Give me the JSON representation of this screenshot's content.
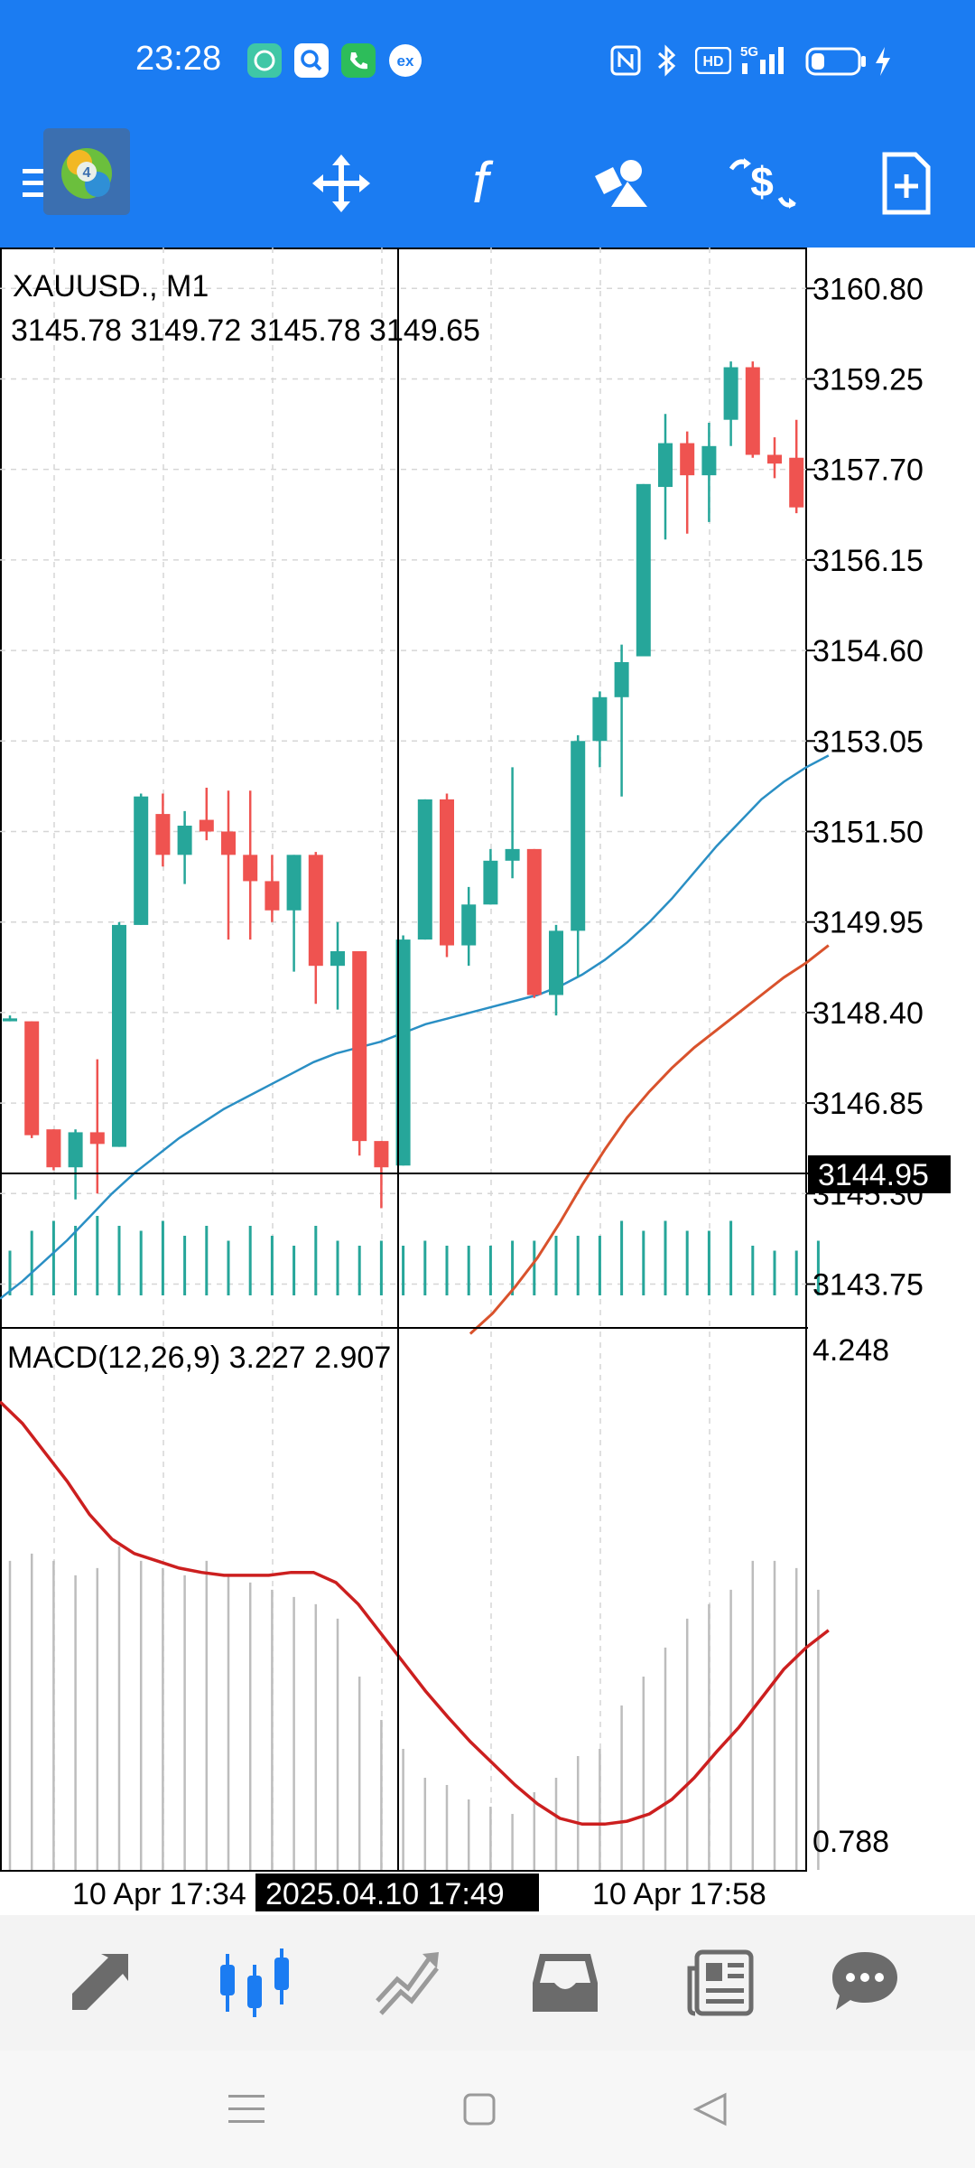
{
  "status_bar": {
    "time": "23:28",
    "left_icons": [
      "chat-app-icon",
      "search-app-icon",
      "phone-app-icon",
      "ex-app-icon"
    ],
    "ex_label": "ex",
    "right_icons": [
      "nfc-icon",
      "bluetooth-icon",
      "hd-icon",
      "5g-signal-icon",
      "battery-icon",
      "charging-icon"
    ],
    "hd_label": "HD",
    "network_label": "5G"
  },
  "toolbar": {
    "items": [
      {
        "name": "menu-icon"
      },
      {
        "name": "app-logo-icon"
      },
      {
        "name": "crosshair-move-icon"
      },
      {
        "name": "indicators-f-icon",
        "label": "f"
      },
      {
        "name": "objects-shapes-icon"
      },
      {
        "name": "trade-dollar-icon"
      },
      {
        "name": "new-order-document-icon"
      }
    ]
  },
  "chart": {
    "symbol_label": "XAUUSD., M1",
    "ohlc_label": "3145.78 3149.72 3145.78 3149.65",
    "price_ticks": [
      "3160.80",
      "3159.25",
      "3157.70",
      "3156.15",
      "3154.60",
      "3153.05",
      "3151.50",
      "3149.95",
      "3148.40",
      "3146.85",
      "3145.30",
      "3143.75"
    ],
    "crosshair_price": "3144.95",
    "crosshair_time": "2025.04.10 17:49",
    "time_ticks": [
      "10 Apr 17:34",
      "10 Apr 17:58"
    ],
    "macd_label": "MACD(12,26,9) 3.227 2.907",
    "macd_ticks": [
      "4.248",
      "0.788"
    ],
    "colors": {
      "bull": "#26a69a",
      "bear": "#ef5350",
      "ma_fast": "#2a8fc4",
      "ma_slow": "#d9522c",
      "macd_signal": "#cc1f1f",
      "macd_hist": "#bdbdbd",
      "volume": "#26a69a"
    }
  },
  "chart_data": {
    "type": "candlestick",
    "symbol": "XAUUSD.",
    "timeframe": "M1",
    "ylim": [
      3143.0,
      3161.5
    ],
    "candles": [
      {
        "o": 3148.25,
        "h": 3148.35,
        "l": 3148.25,
        "c": 3148.3
      },
      {
        "o": 3148.25,
        "h": 3148.25,
        "l": 3146.25,
        "c": 3146.3
      },
      {
        "o": 3146.4,
        "h": 3146.4,
        "l": 3145.7,
        "c": 3145.75
      },
      {
        "o": 3145.75,
        "h": 3146.4,
        "l": 3145.2,
        "c": 3146.35
      },
      {
        "o": 3146.35,
        "h": 3147.6,
        "l": 3145.3,
        "c": 3146.15
      },
      {
        "o": 3146.1,
        "h": 3149.95,
        "l": 3146.1,
        "c": 3149.9
      },
      {
        "o": 3149.9,
        "h": 3152.15,
        "l": 3149.9,
        "c": 3152.1
      },
      {
        "o": 3151.8,
        "h": 3152.15,
        "l": 3150.9,
        "c": 3151.1
      },
      {
        "o": 3151.1,
        "h": 3151.85,
        "l": 3150.6,
        "c": 3151.6
      },
      {
        "o": 3151.7,
        "h": 3152.25,
        "l": 3151.35,
        "c": 3151.5
      },
      {
        "o": 3151.5,
        "h": 3152.2,
        "l": 3149.65,
        "c": 3151.1
      },
      {
        "o": 3151.1,
        "h": 3152.2,
        "l": 3149.65,
        "c": 3150.65
      },
      {
        "o": 3150.65,
        "h": 3151.1,
        "l": 3149.95,
        "c": 3150.15
      },
      {
        "o": 3150.15,
        "h": 3151.1,
        "l": 3149.1,
        "c": 3151.1
      },
      {
        "o": 3151.1,
        "h": 3151.15,
        "l": 3148.55,
        "c": 3149.2
      },
      {
        "o": 3149.2,
        "h": 3149.95,
        "l": 3148.45,
        "c": 3149.45
      },
      {
        "o": 3149.45,
        "h": 3149.45,
        "l": 3145.95,
        "c": 3146.2
      },
      {
        "o": 3146.2,
        "h": 3146.2,
        "l": 3145.05,
        "c": 3145.75
      },
      {
        "o": 3145.78,
        "h": 3149.72,
        "l": 3145.78,
        "c": 3149.65
      },
      {
        "o": 3149.65,
        "h": 3152.05,
        "l": 3149.65,
        "c": 3152.05
      },
      {
        "o": 3152.05,
        "h": 3152.15,
        "l": 3149.35,
        "c": 3149.55
      },
      {
        "o": 3149.55,
        "h": 3150.55,
        "l": 3149.2,
        "c": 3150.25
      },
      {
        "o": 3150.25,
        "h": 3151.2,
        "l": 3150.25,
        "c": 3151.0
      },
      {
        "o": 3151.0,
        "h": 3152.6,
        "l": 3150.7,
        "c": 3151.2
      },
      {
        "o": 3151.2,
        "h": 3151.2,
        "l": 3148.65,
        "c": 3148.7
      },
      {
        "o": 3148.7,
        "h": 3149.9,
        "l": 3148.35,
        "c": 3149.8
      },
      {
        "o": 3149.8,
        "h": 3153.15,
        "l": 3149.0,
        "c": 3153.05
      },
      {
        "o": 3153.05,
        "h": 3153.9,
        "l": 3152.6,
        "c": 3153.8
      },
      {
        "o": 3153.8,
        "h": 3154.7,
        "l": 3152.1,
        "c": 3154.4
      },
      {
        "o": 3154.5,
        "h": 3157.45,
        "l": 3154.5,
        "c": 3157.45
      },
      {
        "o": 3157.4,
        "h": 3158.65,
        "l": 3156.5,
        "c": 3158.15
      },
      {
        "o": 3158.15,
        "h": 3158.35,
        "l": 3156.6,
        "c": 3157.6
      },
      {
        "o": 3157.6,
        "h": 3158.5,
        "l": 3156.8,
        "c": 3158.1
      },
      {
        "o": 3158.55,
        "h": 3159.55,
        "l": 3158.1,
        "c": 3159.45
      },
      {
        "o": 3159.45,
        "h": 3159.55,
        "l": 3157.9,
        "c": 3157.95
      },
      {
        "o": 3157.95,
        "h": 3158.25,
        "l": 3157.55,
        "c": 3157.8
      },
      {
        "o": 3157.9,
        "h": 3158.55,
        "l": 3156.95,
        "c": 3157.05
      }
    ],
    "ma_fast": [
      3143.5,
      3143.8,
      3144.15,
      3144.5,
      3144.9,
      3145.3,
      3145.65,
      3145.95,
      3146.25,
      3146.5,
      3146.75,
      3146.95,
      3147.15,
      3147.35,
      3147.55,
      3147.7,
      3147.8,
      3147.9,
      3148.05,
      3148.2,
      3148.3,
      3148.4,
      3148.5,
      3148.6,
      3148.7,
      3148.85,
      3149.05,
      3149.3,
      3149.6,
      3149.95,
      3150.35,
      3150.8,
      3151.25,
      3151.65,
      3152.05,
      3152.35,
      3152.6,
      3152.8
    ],
    "ma_slow": [
      null,
      null,
      null,
      null,
      null,
      null,
      null,
      null,
      null,
      null,
      null,
      null,
      null,
      null,
      null,
      null,
      null,
      null,
      null,
      null,
      null,
      3142.9,
      3143.25,
      3143.7,
      3144.2,
      3144.8,
      3145.45,
      3146.05,
      3146.6,
      3147.05,
      3147.45,
      3147.8,
      3148.1,
      3148.4,
      3148.7,
      3149.0,
      3149.25,
      3149.55
    ],
    "volume": [
      0.45,
      0.65,
      0.75,
      0.7,
      0.8,
      0.7,
      0.65,
      0.75,
      0.6,
      0.7,
      0.55,
      0.7,
      0.6,
      0.5,
      0.7,
      0.55,
      0.5,
      0.55,
      0.5,
      0.55,
      0.5,
      0.5,
      0.5,
      0.55,
      0.55,
      0.6,
      0.6,
      0.6,
      0.75,
      0.65,
      0.75,
      0.65,
      0.65,
      0.75,
      0.5,
      0.45,
      0.45,
      0.55
    ],
    "macd": {
      "ylim": [
        0.788,
        4.248
      ],
      "signal": [
        3.9,
        3.75,
        3.55,
        3.35,
        3.12,
        2.95,
        2.85,
        2.8,
        2.75,
        2.72,
        2.7,
        2.7,
        2.7,
        2.72,
        2.72,
        2.65,
        2.5,
        2.3,
        2.1,
        1.9,
        1.72,
        1.55,
        1.4,
        1.25,
        1.12,
        1.02,
        0.98,
        0.98,
        1.0,
        1.05,
        1.15,
        1.3,
        1.48,
        1.65,
        1.85,
        2.05,
        2.2,
        2.32
      ],
      "histogram": [
        2.8,
        2.85,
        2.8,
        2.7,
        2.75,
        2.9,
        2.8,
        2.75,
        2.7,
        2.8,
        2.7,
        2.65,
        2.6,
        2.55,
        2.5,
        2.4,
        2.0,
        1.7,
        1.5,
        1.3,
        1.25,
        1.15,
        1.1,
        1.05,
        1.2,
        1.3,
        1.45,
        1.5,
        1.8,
        2.0,
        2.2,
        2.4,
        2.5,
        2.6,
        2.8,
        2.8,
        2.75,
        2.6
      ]
    }
  },
  "bottom_nav": {
    "items": [
      {
        "name": "quotes-nav-icon",
        "active": false
      },
      {
        "name": "chart-nav-icon",
        "active": true
      },
      {
        "name": "trade-nav-icon",
        "active": false
      },
      {
        "name": "history-inbox-nav-icon",
        "active": false
      },
      {
        "name": "news-nav-icon",
        "active": false
      },
      {
        "name": "messages-chat-nav-icon",
        "active": false
      }
    ]
  },
  "system_nav": {
    "items": [
      "recents-menu-icon",
      "home-square-icon",
      "back-triangle-icon"
    ]
  }
}
